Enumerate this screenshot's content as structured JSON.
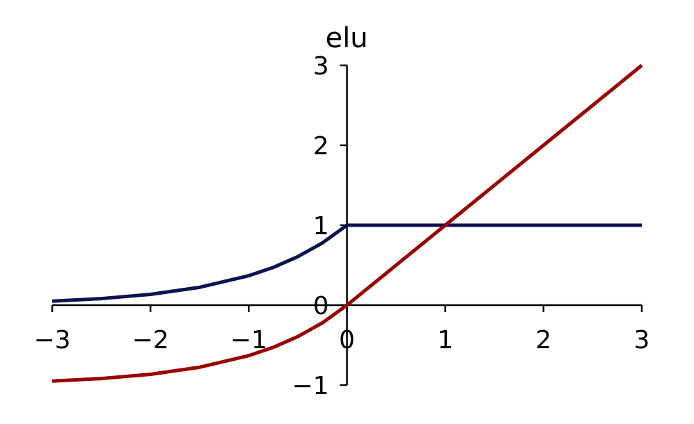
{
  "chart_data": {
    "type": "line",
    "title": "elu",
    "xlabel": "",
    "ylabel": "",
    "xlim": [
      -3,
      3
    ],
    "ylim": [
      -1,
      3
    ],
    "x_ticks": [
      -3,
      -2,
      -1,
      0,
      1,
      2,
      3
    ],
    "x_tick_labels": [
      "−3",
      "−2",
      "−1",
      "0",
      "1",
      "2",
      "3"
    ],
    "y_ticks": [
      -1,
      0,
      1,
      2,
      3
    ],
    "y_tick_labels": [
      "−1",
      "0",
      "1",
      "2",
      "3"
    ],
    "grid": false,
    "axes_position": "centered at origin",
    "series": [
      {
        "color": "#0b1350",
        "x": [
          -3,
          -2.5,
          -2,
          -1.5,
          -1,
          -0.75,
          -0.5,
          -0.25,
          0,
          0.5,
          1,
          1.5,
          2,
          2.5,
          3
        ],
        "y": [
          0.05,
          0.082,
          0.135,
          0.223,
          0.368,
          0.472,
          0.607,
          0.779,
          1,
          1,
          1,
          1,
          1,
          1,
          1
        ]
      },
      {
        "color": "#990000",
        "x": [
          -3,
          -2.5,
          -2,
          -1.5,
          -1,
          -0.75,
          -0.5,
          -0.25,
          0,
          0.5,
          1,
          1.5,
          2,
          2.5,
          3
        ],
        "y": [
          -0.95,
          -0.918,
          -0.865,
          -0.777,
          -0.632,
          -0.528,
          -0.393,
          -0.221,
          0,
          0.5,
          1,
          1.5,
          2,
          2.5,
          3
        ]
      }
    ]
  }
}
